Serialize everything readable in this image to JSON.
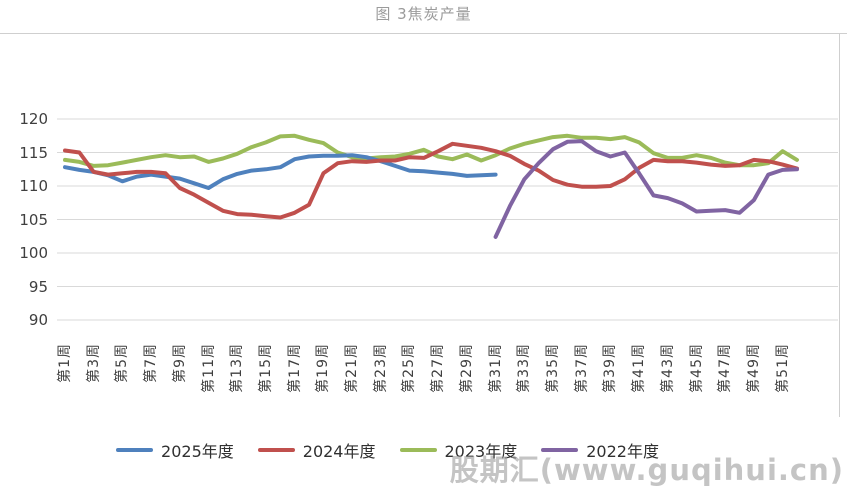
{
  "title": "图 3焦炭产量",
  "watermark": {
    "text": "股期汇(www.guqihui.cn)"
  },
  "colors": {
    "gridline": "#d9d9d9",
    "axis_text": "#3f3f3f",
    "title_text": "#9b9b9b",
    "watermark_text": "#9d9d9d"
  },
  "chart_data": {
    "type": "line",
    "title": "图 3焦炭产量",
    "xlabel": "",
    "ylabel": "",
    "ylim": [
      90,
      120
    ],
    "y_ticks": [
      90,
      95,
      100,
      105,
      110,
      115,
      120
    ],
    "grid": true,
    "legend_position": "bottom",
    "weeks": 52,
    "x_labels": [
      "第1周",
      "第3周",
      "第5周",
      "第7周",
      "第9周",
      "第11周",
      "第13周",
      "第15周",
      "第17周",
      "第19周",
      "第21周",
      "第23周",
      "第25周",
      "第27周",
      "第29周",
      "第31周",
      "第33周",
      "第35周",
      "第37周",
      "第39周",
      "第41周",
      "第43周",
      "第45周",
      "第47周",
      "第49周",
      "第51周"
    ],
    "x_label_weeks": [
      1,
      3,
      5,
      7,
      9,
      11,
      13,
      15,
      17,
      19,
      21,
      23,
      25,
      27,
      29,
      31,
      33,
      35,
      37,
      39,
      41,
      43,
      45,
      47,
      49,
      51
    ],
    "series": [
      {
        "name": "2025年度",
        "color": "#4F81BD",
        "values": [
          112.8,
          112.4,
          112.1,
          111.6,
          110.7,
          111.4,
          111.7,
          111.4,
          111.1,
          110.4,
          109.7,
          111.0,
          111.8,
          112.3,
          112.5,
          112.8,
          114.0,
          114.4,
          114.5,
          114.5,
          114.6,
          114.3,
          113.7,
          113.0,
          112.3,
          112.2,
          112.0,
          111.8,
          111.5,
          111.6,
          111.7,
          null,
          null,
          null,
          null,
          null,
          null,
          null,
          null,
          null,
          null,
          null,
          null,
          null,
          null,
          null,
          null,
          null,
          null,
          null,
          null,
          null
        ]
      },
      {
        "name": "2024年度",
        "color": "#C0504D",
        "values": [
          115.3,
          115.0,
          112.1,
          111.7,
          111.9,
          112.1,
          112.1,
          111.9,
          109.7,
          108.7,
          107.5,
          106.3,
          105.8,
          105.7,
          105.5,
          105.3,
          106.0,
          107.2,
          111.9,
          113.4,
          113.7,
          113.6,
          113.8,
          113.8,
          114.3,
          114.2,
          115.2,
          116.3,
          116.0,
          115.7,
          115.2,
          114.5,
          113.3,
          112.3,
          110.9,
          110.2,
          109.9,
          109.9,
          110.0,
          111.0,
          112.7,
          113.9,
          113.7,
          113.7,
          113.5,
          113.2,
          113.0,
          113.1,
          113.9,
          113.7,
          113.2,
          112.6
        ]
      },
      {
        "name": "2023年度",
        "color": "#9BBB59",
        "values": [
          113.9,
          113.6,
          113.0,
          113.1,
          113.5,
          113.9,
          114.3,
          114.6,
          114.3,
          114.4,
          113.6,
          114.1,
          114.8,
          115.8,
          116.5,
          117.4,
          117.5,
          116.9,
          116.4,
          115.0,
          114.3,
          114.1,
          114.3,
          114.4,
          114.8,
          115.4,
          114.4,
          114.0,
          114.7,
          113.8,
          114.6,
          115.6,
          116.3,
          116.8,
          117.3,
          117.5,
          117.2,
          117.2,
          117.0,
          117.3,
          116.5,
          114.9,
          114.2,
          114.2,
          114.6,
          114.2,
          113.5,
          113.1,
          113.1,
          113.4,
          115.2,
          113.9
        ]
      },
      {
        "name": "2022年度",
        "color": "#8064A2",
        "values": [
          null,
          null,
          null,
          null,
          null,
          null,
          null,
          null,
          null,
          null,
          null,
          null,
          null,
          null,
          null,
          null,
          null,
          null,
          null,
          null,
          null,
          null,
          null,
          null,
          null,
          null,
          null,
          null,
          null,
          null,
          102.4,
          107.0,
          111.0,
          113.4,
          115.5,
          116.6,
          116.7,
          115.2,
          114.4,
          115.0,
          111.9,
          108.6,
          108.2,
          107.4,
          106.2,
          106.3,
          106.4,
          106.0,
          107.9,
          111.7,
          112.4,
          112.5
        ]
      }
    ]
  }
}
